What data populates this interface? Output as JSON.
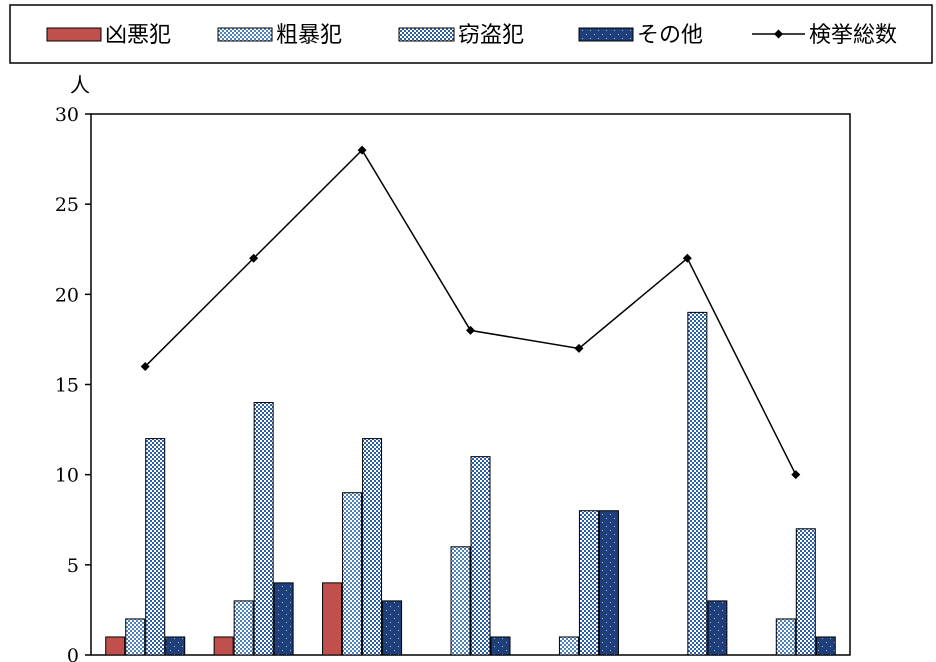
{
  "chart_data": {
    "type": "bar",
    "unit_label": "人",
    "categories": [
      "",
      "",
      "",
      "",
      "",
      "",
      ""
    ],
    "ylim": [
      0,
      30
    ],
    "y_ticks": [
      0,
      5,
      10,
      15,
      20,
      25,
      30
    ],
    "legend_position": "top",
    "grid": false,
    "series": [
      {
        "name": "凶悪犯",
        "kind": "bar",
        "color": "#c0504d",
        "pattern": "solid",
        "values": [
          1,
          1,
          4,
          0,
          0,
          0,
          0
        ]
      },
      {
        "name": "粗暴犯",
        "kind": "bar",
        "color": "#4f81bd",
        "pattern": "checker",
        "values": [
          2,
          3,
          9,
          6,
          1,
          0,
          2
        ]
      },
      {
        "name": "窃盗犯",
        "kind": "bar",
        "color": "#1f4e99",
        "pattern": "checker-dense",
        "values": [
          12,
          14,
          12,
          11,
          8,
          19,
          7
        ]
      },
      {
        "name": "その他",
        "kind": "bar",
        "color": "#1f3f7a",
        "pattern": "dots",
        "values": [
          1,
          4,
          3,
          1,
          8,
          3,
          1
        ]
      },
      {
        "name": "検挙総数",
        "kind": "line",
        "color": "#000000",
        "marker": "diamond",
        "values": [
          16,
          22,
          28,
          18,
          17,
          22,
          10
        ]
      }
    ]
  }
}
